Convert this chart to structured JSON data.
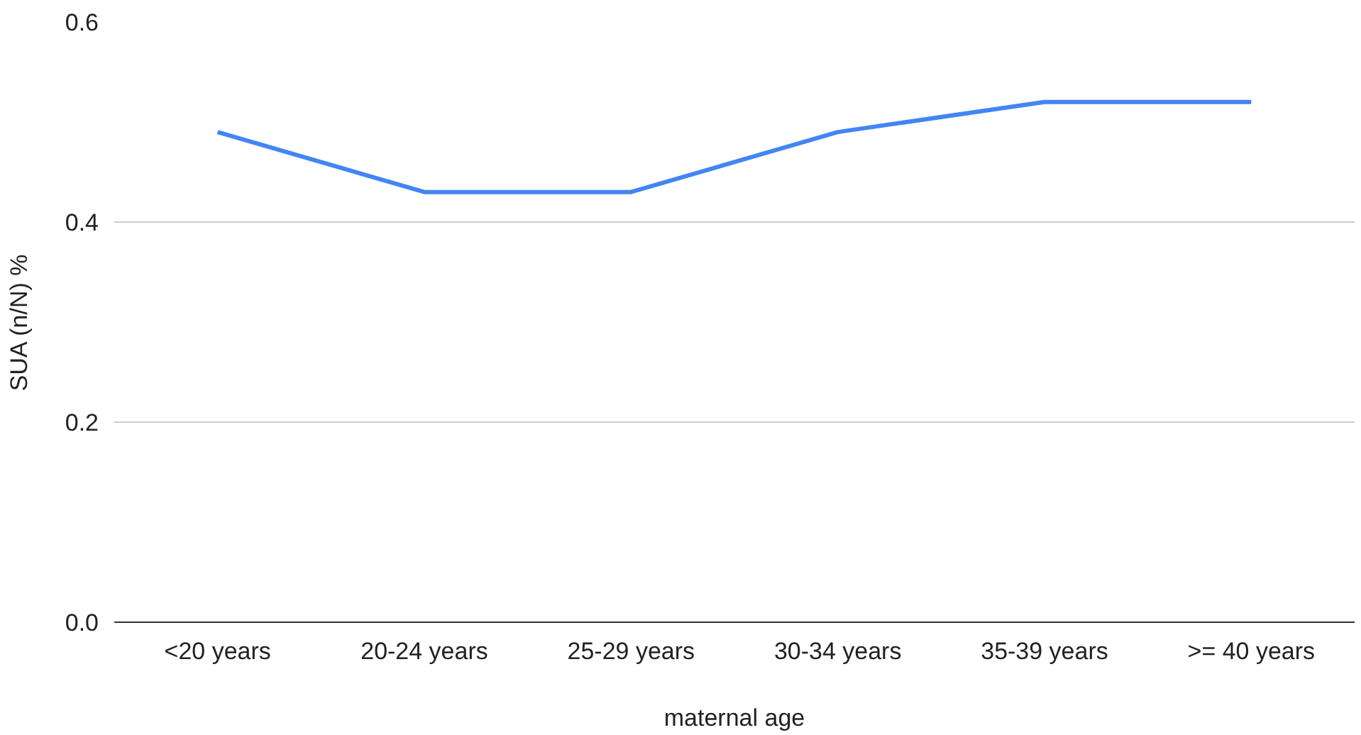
{
  "chart_data": {
    "type": "line",
    "xlabel": "maternal age",
    "ylabel": "SUA (n/N) %",
    "categories": [
      "<20 years",
      "20-24 years",
      "25-29 years",
      "30-34 years",
      "35-39 years",
      ">= 40 years"
    ],
    "series": [
      {
        "color": "#4285f4",
        "values": [
          0.49,
          0.43,
          0.43,
          0.49,
          0.52,
          0.52
        ]
      }
    ],
    "ylim": [
      0,
      0.6
    ],
    "yticks": [
      {
        "value": 0,
        "label": "0.0"
      },
      {
        "value": 0.2,
        "label": "0.2"
      },
      {
        "value": 0.4,
        "label": "0.4"
      },
      {
        "value": 0.6,
        "label": "0.6"
      }
    ],
    "grid": "y",
    "marker": "none",
    "line_style": "solid"
  }
}
